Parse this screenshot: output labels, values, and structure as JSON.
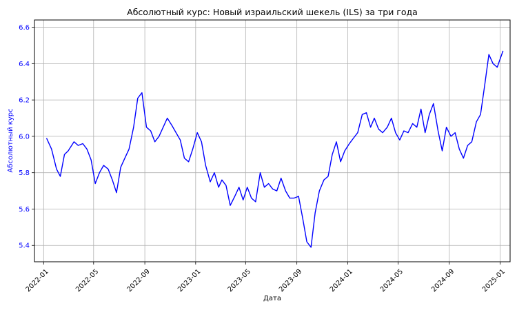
{
  "chart_data": {
    "type": "line",
    "title": "Абсолютный курс: Новый израильский шекель (ILS) за три года",
    "xlabel": "Дата",
    "ylabel": "Абсолютный курс",
    "ylim": [
      5.31,
      6.64
    ],
    "xlim": [
      "2021-12-10",
      "2025-01-25"
    ],
    "x_ticks": [
      "2022-01",
      "2022-05",
      "2022-09",
      "2023-01",
      "2023-05",
      "2023-09",
      "2024-01",
      "2024-05",
      "2024-09",
      "2025-01"
    ],
    "y_ticks": [
      "5.4",
      "5.6",
      "5.8",
      "6.0",
      "6.2",
      "6.4",
      "6.6"
    ],
    "grid": true,
    "colors": {
      "line": "#0000ff",
      "ylabel": "#0000ff",
      "yticks": "#0000ff",
      "grid": "#b0b0b0",
      "axes": "#000000"
    },
    "series": [
      {
        "x": [
          "2022-01-08",
          "2022-01-20",
          "2022-02-01",
          "2022-02-10",
          "2022-02-20",
          "2022-03-01",
          "2022-03-15",
          "2022-03-25",
          "2022-04-05",
          "2022-04-15",
          "2022-04-25",
          "2022-05-05",
          "2022-05-15",
          "2022-05-25",
          "2022-06-05",
          "2022-06-15",
          "2022-06-25",
          "2022-07-05",
          "2022-07-15",
          "2022-07-25",
          "2022-08-05",
          "2022-08-15",
          "2022-08-25",
          "2022-09-05",
          "2022-09-15",
          "2022-09-25",
          "2022-10-05",
          "2022-10-15",
          "2022-10-25",
          "2022-11-05",
          "2022-11-15",
          "2022-11-25",
          "2022-12-05",
          "2022-12-15",
          "2022-12-25",
          "2023-01-05",
          "2023-01-15",
          "2023-01-25",
          "2023-02-05",
          "2023-02-15",
          "2023-02-25",
          "2023-03-05",
          "2023-03-15",
          "2023-03-25",
          "2023-04-05",
          "2023-04-15",
          "2023-04-25",
          "2023-05-05",
          "2023-05-15",
          "2023-05-25",
          "2023-06-05",
          "2023-06-15",
          "2023-06-25",
          "2023-07-05",
          "2023-07-15",
          "2023-07-25",
          "2023-08-05",
          "2023-08-15",
          "2023-08-25",
          "2023-09-05",
          "2023-09-15",
          "2023-09-25",
          "2023-10-05",
          "2023-10-15",
          "2023-10-25",
          "2023-11-05",
          "2023-11-15",
          "2023-11-25",
          "2023-12-05",
          "2023-12-15",
          "2023-12-25",
          "2024-01-05",
          "2024-01-15",
          "2024-01-25",
          "2024-02-05",
          "2024-02-15",
          "2024-02-25",
          "2024-03-05",
          "2024-03-15",
          "2024-03-25",
          "2024-04-05",
          "2024-04-15",
          "2024-04-25",
          "2024-05-05",
          "2024-05-15",
          "2024-05-25",
          "2024-06-05",
          "2024-06-15",
          "2024-06-25",
          "2024-07-05",
          "2024-07-15",
          "2024-07-25",
          "2024-08-05",
          "2024-08-15",
          "2024-08-25",
          "2024-09-05",
          "2024-09-15",
          "2024-09-25",
          "2024-10-05",
          "2024-10-15",
          "2024-10-25",
          "2024-11-05",
          "2024-11-15",
          "2024-11-25",
          "2024-12-05",
          "2024-12-15",
          "2024-12-25",
          "2025-01-08"
        ],
        "values": [
          5.99,
          5.93,
          5.82,
          5.78,
          5.9,
          5.92,
          5.97,
          5.95,
          5.96,
          5.93,
          5.87,
          5.74,
          5.8,
          5.84,
          5.82,
          5.76,
          5.69,
          5.83,
          5.88,
          5.93,
          6.05,
          6.21,
          6.24,
          6.05,
          6.03,
          5.97,
          6.0,
          6.05,
          6.1,
          6.06,
          6.02,
          5.98,
          5.88,
          5.86,
          5.93,
          6.02,
          5.97,
          5.84,
          5.75,
          5.8,
          5.72,
          5.76,
          5.73,
          5.62,
          5.67,
          5.72,
          5.65,
          5.72,
          5.66,
          5.64,
          5.8,
          5.72,
          5.74,
          5.71,
          5.7,
          5.77,
          5.7,
          5.66,
          5.66,
          5.67,
          5.55,
          5.42,
          5.39,
          5.58,
          5.7,
          5.76,
          5.78,
          5.9,
          5.97,
          5.86,
          5.92,
          5.96,
          5.99,
          6.02,
          6.12,
          6.13,
          6.05,
          6.1,
          6.04,
          6.02,
          6.05,
          6.1,
          6.02,
          5.98,
          6.03,
          6.02,
          6.07,
          6.05,
          6.15,
          6.02,
          6.12,
          6.18,
          6.03,
          5.92,
          6.05,
          6.0,
          6.02,
          5.93,
          5.88,
          5.95,
          5.97,
          6.08,
          6.12,
          6.28,
          6.45,
          6.4,
          6.38,
          6.47
        ]
      }
    ]
  }
}
